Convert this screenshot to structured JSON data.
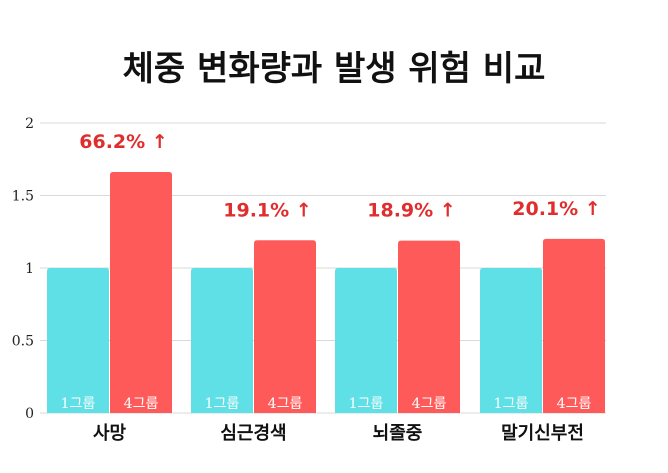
{
  "chart_data": {
    "type": "bar",
    "title": "체중 변화량과 발생 위험 비교",
    "categories": [
      "사망",
      "심근경색",
      "뇌졸중",
      "말기신부전"
    ],
    "series": [
      {
        "name": "1그룹",
        "values": [
          1,
          1,
          1,
          1
        ]
      },
      {
        "name": "4그룹",
        "values": [
          1.662,
          1.191,
          1.189,
          1.201
        ]
      }
    ],
    "annotations": [
      "66.2% ↑",
      "19.1% ↑",
      "18.9% ↑",
      "20.1% ↑"
    ],
    "yticks": [
      "0",
      "0.5",
      "1",
      "1.5",
      "2"
    ],
    "ytick_values": [
      0,
      0.5,
      1,
      1.5,
      2
    ],
    "ylim": [
      0,
      2
    ],
    "grid": true,
    "colors": {
      "group1": "#5ee0e6",
      "group4": "#ff5a5a",
      "annotation": "#e02d2d"
    }
  }
}
